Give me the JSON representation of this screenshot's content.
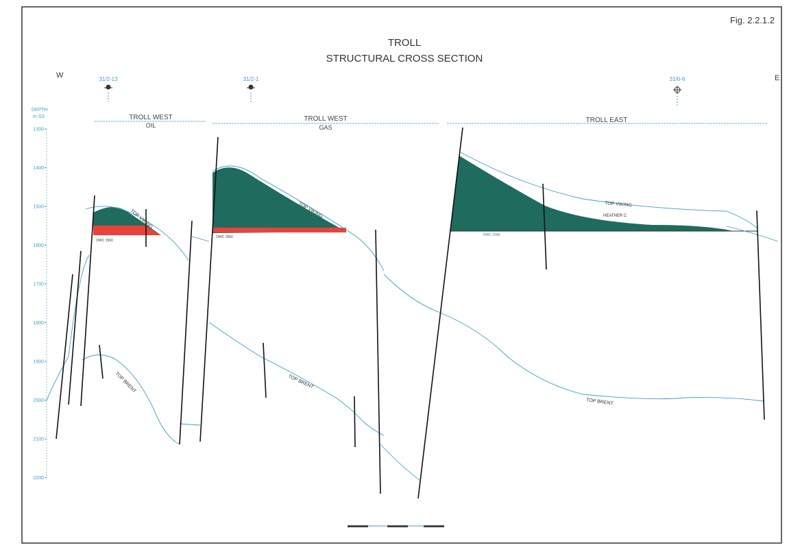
{
  "figure_number": "Fig. 2.2.1.2",
  "title": "TROLL",
  "subtitle": "STRUCTURAL CROSS SECTION",
  "direction_west": "W",
  "direction_east": "E",
  "depth_axis": {
    "label_line1": "DEPTH",
    "label_line2": "m SS",
    "ticks": [
      "1300",
      "1400",
      "1500",
      "1600",
      "1700",
      "1800",
      "1900",
      "2000",
      "2100",
      "2200"
    ]
  },
  "wells": [
    {
      "name": "31/2-13",
      "symbol": "oil-well-icon"
    },
    {
      "name": "31/2-1",
      "symbol": "gas-well-icon"
    },
    {
      "name": "31/6-6",
      "symbol": "gas-well-icon"
    }
  ],
  "provinces": [
    {
      "name": "TROLL WEST",
      "fluid": "OIL"
    },
    {
      "name": "TROLL WEST",
      "fluid": "GAS"
    },
    {
      "name": "TROLL EAST",
      "fluid": ""
    }
  ],
  "horizons": {
    "top_viking_1": "TOP VIKING",
    "top_viking_2": "TOP VIKING",
    "top_viking_3": "TOP VIKING",
    "heather": "HEATHER C",
    "top_brent_1": "TOP BRENT",
    "top_brent_2": "TOP BRENT",
    "top_brent_3": "TOP BRENT"
  },
  "contacts": {
    "owc_1": "OWC 1560",
    "owc_2": "OWC 1560",
    "hwc": "HWC 1546"
  },
  "colors": {
    "gas": "#1f6b5e",
    "oil": "#e8433a",
    "horizon": "#3a9fd0",
    "fault": "#111111"
  }
}
